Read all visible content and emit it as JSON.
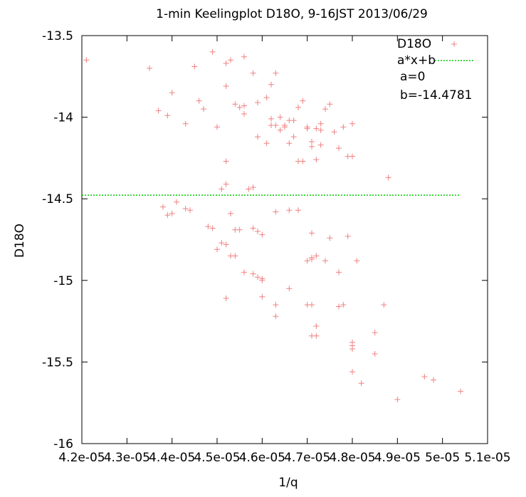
{
  "chart_data": {
    "type": "scatter",
    "title": "1-min Keelingplot D18O, 9-16JST 2013/06/29",
    "xlabel": "1/q",
    "ylabel": "D18O",
    "xlim": [
      4.2e-05,
      5.1e-05
    ],
    "ylim": [
      -16,
      -13.5
    ],
    "xticks": [
      4.2e-05,
      4.3e-05,
      4.4e-05,
      4.5e-05,
      4.6e-05,
      4.7e-05,
      4.8e-05,
      4.9e-05,
      5e-05,
      5.1e-05
    ],
    "xtick_labels": [
      "4.2e-05",
      "4.3e-05",
      "4.4e-05",
      "4.5e-05",
      "4.6e-05",
      "4.7e-05",
      "4.8e-05",
      "4.9e-05",
      "5e-05",
      "5.1e-05"
    ],
    "yticks": [
      -16,
      -15.5,
      -15,
      -14.5,
      -14,
      -13.5
    ],
    "ytick_labels": [
      "-16",
      "-15.5",
      "-15",
      "-14.5",
      "-14",
      "-13.5"
    ],
    "grid": false,
    "legend_position": "top-right",
    "legend": [
      {
        "label": "D18O",
        "symbol": "plus",
        "color": "#f08080"
      },
      {
        "label": "a*x+b",
        "symbol": "dotted-line",
        "color": "#00cc00"
      }
    ],
    "annotations": [
      "a=0",
      "b=-14.4781"
    ],
    "fit": {
      "a": 0,
      "b": -14.4781,
      "x_range": [
        4.2e-05,
        5.04e-05
      ],
      "color": "#00cc00"
    },
    "series": [
      {
        "name": "D18O",
        "color": "#f08080",
        "x": [
          4.21e-05,
          4.35e-05,
          4.49e-05,
          4.53e-05,
          4.56e-05,
          4.45e-05,
          4.52e-05,
          4.58e-05,
          4.63e-05,
          4.52e-05,
          4.62e-05,
          4.4e-05,
          4.61e-05,
          4.46e-05,
          4.59e-05,
          4.69e-05,
          4.75e-05,
          4.54e-05,
          4.55e-05,
          4.56e-05,
          4.47e-05,
          4.68e-05,
          4.74e-05,
          4.56e-05,
          4.37e-05,
          4.39e-05,
          4.62e-05,
          4.64e-05,
          4.43e-05,
          4.62e-05,
          4.66e-05,
          4.67e-05,
          4.73e-05,
          4.5e-05,
          4.65e-05,
          4.7e-05,
          4.72e-05,
          4.63e-05,
          4.65e-05,
          4.73e-05,
          4.78e-05,
          4.8e-05,
          4.64e-05,
          4.7e-05,
          4.76e-05,
          4.67e-05,
          4.71e-05,
          4.73e-05,
          4.61e-05,
          4.66e-05,
          4.71e-05,
          4.77e-05,
          4.8e-05,
          4.59e-05,
          4.52e-05,
          4.69e-05,
          4.79e-05,
          4.68e-05,
          4.72e-05,
          4.88e-05,
          4.52e-05,
          4.58e-05,
          4.57e-05,
          4.51e-05,
          4.38e-05,
          4.39e-05,
          4.44e-05,
          4.43e-05,
          4.4e-05,
          4.41e-05,
          4.53e-05,
          4.63e-05,
          4.66e-05,
          4.68e-05,
          4.48e-05,
          4.49e-05,
          4.54e-05,
          4.55e-05,
          4.58e-05,
          4.59e-05,
          4.6e-05,
          4.71e-05,
          4.75e-05,
          4.79e-05,
          4.52e-05,
          4.51e-05,
          4.5e-05,
          4.53e-05,
          4.54e-05,
          4.56e-05,
          4.58e-05,
          4.59e-05,
          4.6e-05,
          4.6e-05,
          4.7e-05,
          4.71e-05,
          4.72e-05,
          4.71e-05,
          4.74e-05,
          4.77e-05,
          4.81e-05,
          4.52e-05,
          4.6e-05,
          4.66e-05,
          4.63e-05,
          4.63e-05,
          4.7e-05,
          4.71e-05,
          4.78e-05,
          4.77e-05,
          4.72e-05,
          4.72e-05,
          4.71e-05,
          4.87e-05,
          4.8e-05,
          4.8e-05,
          4.8e-05,
          4.85e-05,
          4.85e-05,
          4.8e-05,
          4.82e-05,
          4.96e-05,
          4.98e-05,
          4.9e-05,
          5.04e-05
        ],
        "y": [
          -13.65,
          -13.7,
          -13.6,
          -13.65,
          -13.63,
          -13.69,
          -13.67,
          -13.73,
          -13.73,
          -13.81,
          -13.8,
          -13.85,
          -13.88,
          -13.9,
          -13.91,
          -13.9,
          -13.92,
          -13.92,
          -13.94,
          -13.93,
          -13.95,
          -13.94,
          -13.95,
          -13.98,
          -13.96,
          -13.99,
          -14.01,
          -14.0,
          -14.04,
          -14.05,
          -14.02,
          -14.02,
          -14.04,
          -14.06,
          -14.06,
          -14.06,
          -14.07,
          -14.05,
          -14.05,
          -14.08,
          -14.06,
          -14.04,
          -14.08,
          -14.07,
          -14.09,
          -14.12,
          -14.15,
          -14.17,
          -14.16,
          -14.16,
          -14.18,
          -14.19,
          -14.24,
          -14.12,
          -14.27,
          -14.27,
          -14.24,
          -14.27,
          -14.26,
          -14.37,
          -14.41,
          -14.43,
          -14.44,
          -14.44,
          -14.55,
          -14.6,
          -14.57,
          -14.56,
          -14.59,
          -14.52,
          -14.59,
          -14.58,
          -14.57,
          -14.57,
          -14.67,
          -14.68,
          -14.69,
          -14.69,
          -14.68,
          -14.7,
          -14.72,
          -14.71,
          -14.74,
          -14.73,
          -14.78,
          -14.77,
          -14.81,
          -14.85,
          -14.85,
          -14.95,
          -14.96,
          -14.98,
          -14.99,
          -15.1,
          -14.88,
          -14.86,
          -14.85,
          -14.87,
          -14.88,
          -14.95,
          -14.88,
          -15.11,
          -15.0,
          -15.05,
          -15.15,
          -15.22,
          -15.15,
          -15.15,
          -15.15,
          -15.16,
          -15.28,
          -15.34,
          -15.34,
          -15.15,
          -15.38,
          -15.42,
          -15.4,
          -15.32,
          -15.45,
          -15.56,
          -15.63,
          -15.59,
          -15.61,
          -15.73,
          -15.68
        ]
      }
    ]
  }
}
